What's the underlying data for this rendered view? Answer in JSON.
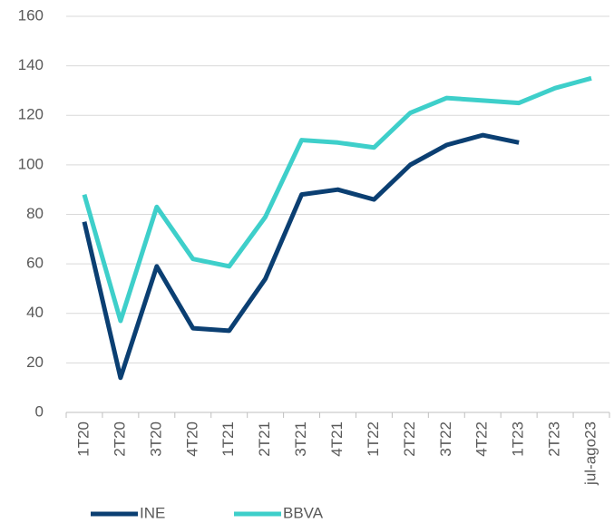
{
  "chart_data": {
    "type": "line",
    "categories": [
      "1T20",
      "2T20",
      "3T20",
      "4T20",
      "1T21",
      "2T21",
      "3T21",
      "4T21",
      "1T22",
      "2T22",
      "3T22",
      "4T22",
      "1T23",
      "2T23",
      "jul-ago23"
    ],
    "series": [
      {
        "name": "INE",
        "color": "#0b3f72",
        "values": [
          77,
          14,
          59,
          34,
          33,
          54,
          88,
          90,
          86,
          100,
          108,
          112,
          109,
          null,
          null
        ]
      },
      {
        "name": "BBVA",
        "color": "#3ecfca",
        "values": [
          88,
          37,
          83,
          62,
          59,
          79,
          110,
          109,
          107,
          121,
          127,
          126,
          125,
          131,
          135
        ]
      }
    ],
    "ylim": [
      0,
      160
    ],
    "yticks": [
      0,
      20,
      40,
      60,
      80,
      100,
      120,
      140,
      160
    ],
    "grid": true,
    "legend": "bottom"
  }
}
